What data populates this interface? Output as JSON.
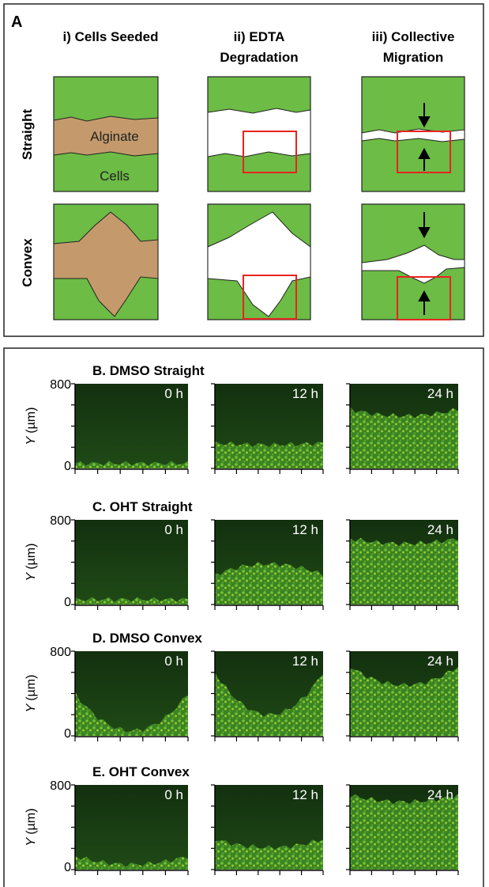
{
  "panel_a": {
    "label": "A",
    "columns": [
      [
        "i) Cells Seeded"
      ],
      [
        "ii) EDTA",
        "Degradation"
      ],
      [
        "iii) Collective",
        "Migration"
      ]
    ],
    "rows": [
      "Straight",
      "Convex"
    ],
    "alginate_label": "Alginate",
    "cells_label": "Cells"
  },
  "panels": [
    {
      "title": "B. DMSO Straight",
      "times": [
        "0 h",
        "12 h",
        "24 h"
      ],
      "yticks": [
        "800",
        "0"
      ],
      "y_var": "Y",
      "y_unit": "(µm)"
    },
    {
      "title": "C. OHT Straight",
      "times": [
        "0 h",
        "12 h",
        "24 h"
      ],
      "yticks": [
        "800",
        "0"
      ],
      "y_var": "Y",
      "y_unit": "(µm)"
    },
    {
      "title": "D. DMSO Convex",
      "times": [
        "0 h",
        "12 h",
        "24 h"
      ],
      "yticks": [
        "800",
        "0"
      ],
      "y_var": "Y",
      "y_unit": "(µm)"
    },
    {
      "title": "E. OHT Convex",
      "times": [
        "0 h",
        "12 h",
        "24 h"
      ],
      "yticks": [
        "800",
        "0"
      ],
      "y_var": "Y",
      "y_unit": "(µm)"
    }
  ]
}
